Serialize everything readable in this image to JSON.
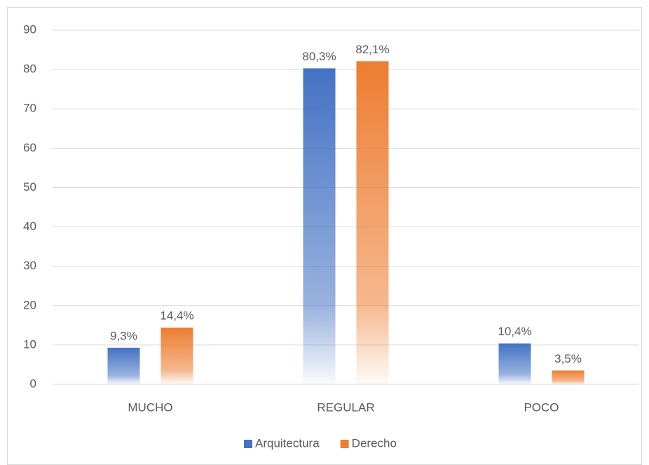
{
  "chart_data": {
    "type": "bar",
    "categories": [
      "MUCHO",
      "REGULAR",
      "POCO"
    ],
    "series": [
      {
        "name": "Arquitectura",
        "color": "#4472c4",
        "values": [
          9.3,
          80.3,
          10.4
        ],
        "value_labels": [
          "9,3%",
          "80,3%",
          "10,4%"
        ]
      },
      {
        "name": "Derecho",
        "color": "#ed7d31",
        "values": [
          14.4,
          82.1,
          3.5
        ],
        "value_labels": [
          "14,4%",
          "82,1%",
          "3,5%"
        ]
      }
    ],
    "ylim": [
      0,
      90
    ],
    "yticks": [
      0,
      10,
      20,
      30,
      40,
      50,
      60,
      70,
      80,
      90
    ],
    "grid": true,
    "legend": "bottom"
  }
}
